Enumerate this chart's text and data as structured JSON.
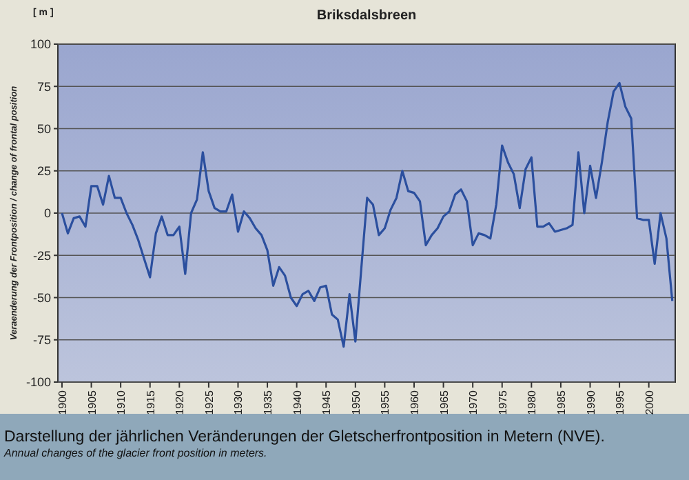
{
  "chart_data": {
    "type": "line",
    "title": "Briksdalsbreen",
    "ylabel": "Veraenderung der Frontposition / change of frontal position",
    "annotations": [
      "[ m ]",
      "Darstellung der jährlichen Veränderungen der Gletscherfrontposition in Metern (NVE).",
      "Annual changes of the glacier front position in meters."
    ],
    "x": [
      1900,
      1901,
      1902,
      1903,
      1904,
      1905,
      1906,
      1907,
      1908,
      1909,
      1910,
      1911,
      1912,
      1913,
      1914,
      1915,
      1916,
      1917,
      1918,
      1919,
      1920,
      1921,
      1922,
      1923,
      1924,
      1925,
      1926,
      1927,
      1928,
      1929,
      1930,
      1931,
      1932,
      1933,
      1934,
      1935,
      1936,
      1937,
      1938,
      1939,
      1940,
      1941,
      1942,
      1943,
      1944,
      1945,
      1946,
      1947,
      1948,
      1949,
      1950,
      1951,
      1952,
      1953,
      1954,
      1955,
      1956,
      1957,
      1958,
      1959,
      1960,
      1961,
      1962,
      1963,
      1964,
      1965,
      1966,
      1967,
      1968,
      1969,
      1970,
      1971,
      1972,
      1973,
      1974,
      1975,
      1976,
      1977,
      1978,
      1979,
      1980,
      1981,
      1982,
      1983,
      1984,
      1985,
      1986,
      1987,
      1988,
      1989,
      1990,
      1991,
      1992,
      1993,
      1994,
      1995,
      1996,
      1997,
      1998,
      1999,
      2000,
      2001,
      2002,
      2003,
      2004
    ],
    "series": [
      {
        "color": "#2b4f9e",
        "values": [
          0,
          -12,
          -3,
          -2,
          -8,
          16,
          16,
          5,
          22,
          9,
          9,
          0,
          -7,
          -16,
          -27,
          -38,
          -12,
          -2,
          -13,
          -13,
          -8,
          -36,
          0,
          8,
          36,
          13,
          3,
          1,
          1,
          11,
          -11,
          1,
          -3,
          -9,
          -13,
          -22,
          -43,
          -32,
          -37,
          -50,
          -55,
          -48,
          -46,
          -52,
          -44,
          -43,
          -60,
          -63,
          -79,
          -48,
          -76,
          -33,
          9,
          5,
          -13,
          -9,
          2,
          9,
          25,
          13,
          12,
          7,
          -19,
          -13,
          -9,
          -2,
          1,
          11,
          14,
          7,
          -19,
          -12,
          -13,
          -15,
          5,
          40,
          30,
          23,
          3,
          26,
          33,
          -8,
          -8,
          -6,
          -11,
          -10,
          -9,
          -7,
          36,
          0,
          28,
          9,
          30,
          54,
          72,
          77,
          63,
          56,
          -3,
          -4,
          -4,
          -30,
          0,
          -15,
          -52
        ]
      }
    ],
    "xlim": [
      1899.3,
      2004.5
    ],
    "xticks": [
      1900,
      1905,
      1910,
      1915,
      1920,
      1925,
      1930,
      1935,
      1940,
      1945,
      1950,
      1955,
      1960,
      1965,
      1970,
      1975,
      1980,
      1985,
      1990,
      1995,
      2000
    ],
    "ylim": [
      -100,
      100
    ],
    "yticks": [
      -100,
      -75,
      -50,
      -25,
      0,
      25,
      50,
      75,
      100
    ],
    "grid": "y",
    "marker": "none",
    "line_style": "solid"
  }
}
